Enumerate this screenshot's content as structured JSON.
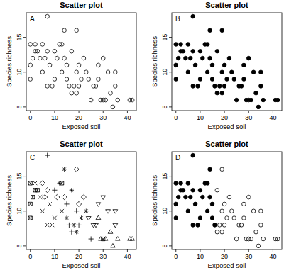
{
  "chart_data": [
    {
      "type": "scatter",
      "title": "Scatter plot",
      "annotation": "A",
      "x_label": "Exposed soil",
      "y_label": "Species richness",
      "xlim": [
        -1.68,
        43.68
      ],
      "ylim": [
        4.48,
        18.52
      ],
      "xticks": [
        0,
        10,
        20,
        30,
        40
      ],
      "yticks": [
        5,
        10,
        15
      ],
      "series": [
        {
          "marker": "circle-open",
          "color": "#000000",
          "x": [
            0,
            0,
            0,
            1,
            2,
            2,
            3,
            4,
            5,
            5,
            6,
            7,
            7,
            7,
            8,
            9,
            10,
            10,
            11,
            12,
            13,
            13,
            14,
            14,
            15,
            15,
            16,
            17,
            17,
            18,
            19,
            19,
            19,
            20,
            20,
            21,
            22,
            23,
            24,
            25,
            26,
            27,
            28,
            28,
            29,
            30,
            30,
            31,
            32,
            33,
            34,
            35,
            35,
            36,
            41,
            42
          ],
          "values": [
            14,
            11,
            9,
            12,
            14,
            13,
            13,
            12,
            14,
            10,
            12,
            13,
            8,
            18,
            11,
            8,
            13,
            9,
            12,
            14,
            10,
            14,
            16,
            12,
            9,
            11,
            8,
            7,
            13,
            8,
            16,
            10,
            7,
            11,
            8,
            9,
            12,
            10,
            9,
            6,
            8,
            8,
            11,
            9,
            6,
            6,
            12,
            6,
            10,
            7,
            5,
            10,
            8,
            6,
            6,
            6
          ]
        }
      ]
    },
    {
      "type": "scatter",
      "title": "Scatter plot",
      "annotation": "B",
      "x_label": "Exposed soil",
      "y_label": "Species richness",
      "xlim": [
        -1.68,
        43.68
      ],
      "ylim": [
        4.48,
        18.52
      ],
      "xticks": [
        0,
        10,
        20,
        30,
        40
      ],
      "yticks": [
        5,
        10,
        15
      ],
      "series": [
        {
          "marker": "circle-filled",
          "color": "#000000",
          "x": [
            0,
            0,
            0,
            1,
            2,
            2,
            3,
            4,
            5,
            5,
            6,
            7,
            7,
            7,
            8,
            9,
            10,
            10,
            11,
            12,
            13,
            13,
            14,
            14,
            15,
            15,
            16,
            17,
            17,
            18,
            19,
            19,
            19,
            20,
            20,
            21,
            22,
            23,
            24,
            25,
            26,
            27,
            28,
            28,
            29,
            30,
            30,
            31,
            32,
            33,
            34,
            35,
            35,
            36,
            41,
            42
          ],
          "values": [
            14,
            11,
            9,
            12,
            14,
            13,
            13,
            12,
            14,
            10,
            12,
            13,
            8,
            18,
            11,
            8,
            13,
            9,
            12,
            14,
            10,
            14,
            16,
            12,
            9,
            11,
            8,
            7,
            13,
            8,
            16,
            10,
            7,
            11,
            8,
            9,
            12,
            10,
            9,
            6,
            8,
            8,
            11,
            9,
            6,
            6,
            12,
            6,
            10,
            7,
            5,
            10,
            8,
            6,
            6,
            6
          ]
        }
      ]
    },
    {
      "type": "scatter",
      "title": "Scatter plot",
      "annotation": "C",
      "x_label": "Exposed soil",
      "y_label": "Species richness",
      "xlim": [
        -1.68,
        43.68
      ],
      "ylim": [
        4.48,
        18.52
      ],
      "xticks": [
        0,
        10,
        20,
        30,
        40
      ],
      "yticks": [
        5,
        10,
        15
      ],
      "series": [
        {
          "marker": "square-cross",
          "color": "#000000",
          "x": [
            0,
            0,
            0,
            1,
            2,
            3,
            13,
            30
          ],
          "values": [
            14,
            11,
            9,
            12,
            13,
            13,
            14,
            6
          ]
        },
        {
          "marker": "cross",
          "color": "#000000",
          "x": [
            2,
            4,
            5,
            7,
            8,
            10,
            9,
            13
          ],
          "values": [
            14,
            12,
            10,
            8,
            11,
            9,
            8,
            10
          ]
        },
        {
          "marker": "diamond",
          "color": "#000000",
          "x": [
            5,
            6,
            7,
            11,
            19,
            14,
            20,
            22
          ],
          "values": [
            14,
            12,
            13,
            12,
            16,
            12,
            11,
            12
          ]
        },
        {
          "marker": "plus",
          "color": "#000000",
          "x": [
            7,
            10,
            15,
            16,
            17,
            19,
            20,
            25
          ],
          "values": [
            18,
            13,
            11,
            8,
            7,
            10,
            8,
            6
          ]
        },
        {
          "marker": "asterisk",
          "color": "#000000",
          "x": [
            12,
            14,
            17,
            18,
            19,
            21,
            15,
            23
          ],
          "values": [
            14,
            16,
            13,
            8,
            7,
            9,
            9,
            10
          ]
        },
        {
          "marker": "triangle-down",
          "color": "#000000",
          "x": [
            24,
            26,
            27,
            28,
            30,
            32,
            35,
            35
          ],
          "values": [
            9,
            8,
            8,
            11,
            12,
            10,
            10,
            8
          ]
        },
        {
          "marker": "triangle",
          "color": "#000000",
          "x": [
            28,
            29,
            31,
            33,
            34,
            36,
            41,
            42
          ],
          "values": [
            9,
            6,
            6,
            7,
            5,
            6,
            6,
            6
          ]
        }
      ]
    },
    {
      "type": "scatter",
      "title": "Scatter plot",
      "annotation": "D",
      "x_label": "Exposed soil",
      "y_label": "Species richness",
      "xlim": [
        -1.68,
        43.68
      ],
      "ylim": [
        4.48,
        18.52
      ],
      "xticks": [
        0,
        10,
        20,
        30,
        40
      ],
      "yticks": [
        5,
        10,
        15
      ],
      "series": [
        {
          "marker": "circle-filled",
          "color": "#000000",
          "x": [
            0,
            0,
            0,
            1,
            2,
            2,
            3,
            4,
            5,
            5,
            6,
            7,
            7,
            7,
            8,
            9,
            10,
            10,
            11,
            12,
            13,
            13,
            14,
            14,
            15,
            15,
            16
          ],
          "values": [
            14,
            11,
            9,
            12,
            14,
            13,
            13,
            12,
            14,
            10,
            12,
            13,
            8,
            18,
            11,
            8,
            13,
            9,
            12,
            14,
            10,
            14,
            16,
            12,
            9,
            11,
            8
          ]
        },
        {
          "marker": "circle-open",
          "color": "#000000",
          "x": [
            17,
            17,
            18,
            19,
            19,
            19,
            20,
            20,
            21,
            22,
            23,
            24,
            25,
            26,
            27,
            28,
            28,
            29,
            30,
            30,
            31,
            32,
            33,
            34,
            35,
            35,
            36,
            41,
            42
          ],
          "values": [
            7,
            13,
            8,
            16,
            10,
            7,
            11,
            8,
            9,
            12,
            10,
            9,
            6,
            8,
            8,
            11,
            9,
            6,
            6,
            12,
            6,
            10,
            7,
            5,
            10,
            8,
            6,
            6,
            6
          ]
        }
      ]
    }
  ]
}
